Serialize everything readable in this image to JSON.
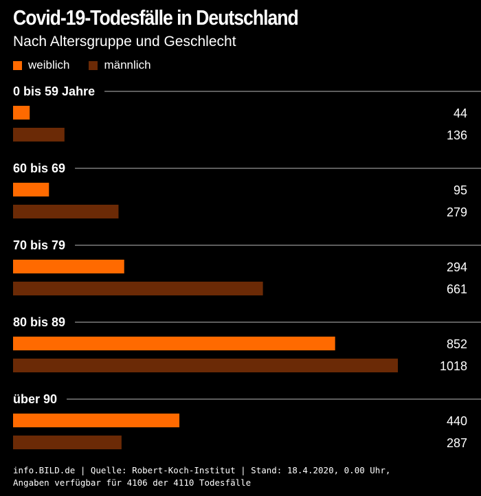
{
  "header": {
    "title": "Covid-19-Todesfälle in Deutschland",
    "subtitle": "Nach Altersgruppe und Geschlecht"
  },
  "legend": {
    "female_label": "weiblich",
    "male_label": "männlich",
    "female_color": "#ff6a00",
    "male_color": "#6b2a06"
  },
  "chart_data": {
    "type": "bar",
    "orientation": "horizontal",
    "title": "Covid-19-Todesfälle in Deutschland",
    "subtitle": "Nach Altersgruppe und Geschlecht",
    "categories": [
      "0 bis 59 Jahre",
      "60 bis 69",
      "70 bis 79",
      "80 bis 89",
      "über 90"
    ],
    "series": [
      {
        "name": "weiblich",
        "color": "#ff6a00",
        "values": [
          44,
          95,
          294,
          852,
          440
        ]
      },
      {
        "name": "männlich",
        "color": "#6b2a06",
        "values": [
          136,
          279,
          661,
          1018,
          287
        ]
      }
    ],
    "xlim": [
      0,
      1018
    ],
    "grid": false,
    "legend_position": "top-left"
  },
  "footer": {
    "line1": "info.BILD.de | Quelle: Robert-Koch-Institut | Stand: 18.4.2020, 0.00 Uhr,",
    "line2": "Angaben verfügbar für 4106 der 4110 Todesfälle"
  }
}
